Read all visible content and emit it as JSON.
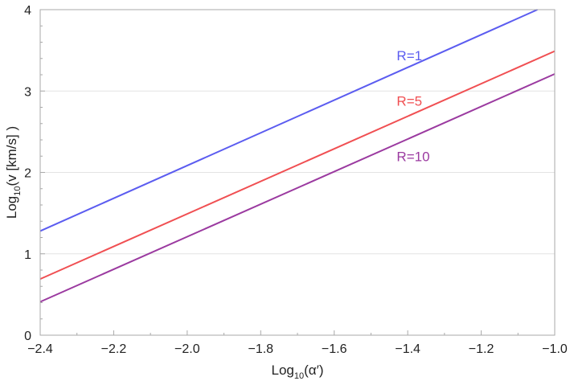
{
  "chart_data": {
    "type": "line",
    "title": "",
    "xlabel": {
      "main": "Log",
      "sub": "10",
      "rest": "(α′)"
    },
    "ylabel": {
      "main": "Log",
      "sub": "10",
      "rest": "(v [km/s] )"
    },
    "xlim": [
      -2.4,
      -1.0
    ],
    "ylim": [
      0,
      4
    ],
    "xticks": [
      -2.4,
      -2.2,
      -2.0,
      -1.8,
      -1.6,
      -1.4,
      -1.2,
      -1.0
    ],
    "xtick_labels": [
      "−2.4",
      "−2.2",
      "−2.0",
      "−1.8",
      "−1.6",
      "−1.4",
      "−1.2",
      "−1.0"
    ],
    "yticks": [
      0,
      1,
      2,
      3,
      4
    ],
    "ytick_labels": [
      "0",
      "1",
      "2",
      "3",
      "4"
    ],
    "grid": "horizontal",
    "series": [
      {
        "name": "R=1",
        "color": "#5b5cf0",
        "x": [
          -2.4,
          -1.047
        ],
        "y": [
          1.28,
          4.0
        ]
      },
      {
        "name": "R=5",
        "color": "#f04f52",
        "x": [
          -2.4,
          -1.0
        ],
        "y": [
          0.69,
          3.49
        ]
      },
      {
        "name": "R=10",
        "color": "#9b3aa0",
        "x": [
          -2.4,
          -1.0
        ],
        "y": [
          0.41,
          3.21
        ]
      }
    ]
  }
}
